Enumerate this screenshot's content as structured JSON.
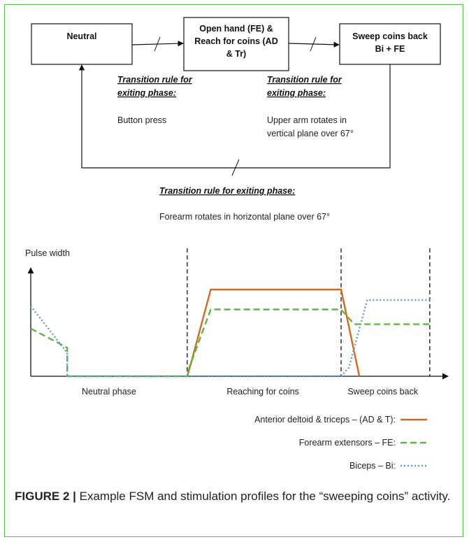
{
  "fsm": {
    "states": [
      {
        "id": "neutral",
        "lines": [
          "Neutral"
        ]
      },
      {
        "id": "open-hand",
        "lines": [
          "Open hand (FE) &",
          "Reach for coins (AD",
          "& Tr)"
        ]
      },
      {
        "id": "sweep",
        "lines": [
          "Sweep coins back",
          "Bi + FE"
        ]
      }
    ],
    "rules": [
      {
        "id": "rule-1",
        "heading": [
          "Transition rule for",
          "exiting phase:"
        ],
        "body": [
          "Button press"
        ]
      },
      {
        "id": "rule-2",
        "heading": [
          "Transition rule for",
          "exiting phase:"
        ],
        "body": [
          "Upper arm rotates in",
          "vertical plane over 67°"
        ]
      },
      {
        "id": "rule-3",
        "heading": [
          "Transition rule for exiting phase:"
        ],
        "body": [
          "Forearm rotates in horizontal plane over 67°"
        ]
      }
    ]
  },
  "chart_data": {
    "type": "line",
    "ylabel": "Pulse width",
    "phases": [
      "Neutral phase",
      "Reaching for coins",
      "Sweep coins back"
    ],
    "series": [
      {
        "name": "Anterior deltoid & triceps – (AD & T):",
        "color": "#d4691e",
        "style": "solid",
        "points": [
          [
            3,
            0.0
          ],
          [
            3.05,
            0.1
          ],
          [
            3.45,
            1.0
          ],
          [
            5.95,
            1.0
          ],
          [
            6.3,
            0.0
          ]
        ]
      },
      {
        "name": "Forearm extensors – FE:",
        "color": "#5cb83c",
        "style": "dashed",
        "points": [
          [
            0,
            0.55
          ],
          [
            0.7,
            0.33
          ],
          [
            0.7,
            0.0
          ],
          [
            3,
            0.0
          ],
          [
            3.05,
            0.12
          ],
          [
            3.45,
            0.77
          ],
          [
            5.95,
            0.77
          ],
          [
            6.2,
            0.6
          ],
          [
            7.7,
            0.6
          ]
        ]
      },
      {
        "name": "Biceps – Bi:",
        "color": "#5b9bd5",
        "style": "dotted",
        "points": [
          [
            0,
            0.81
          ],
          [
            0.7,
            0.27
          ],
          [
            0.7,
            0.0
          ],
          [
            3,
            0.0
          ],
          [
            5.95,
            0.0
          ],
          [
            6.1,
            0.1
          ],
          [
            6.45,
            0.88
          ],
          [
            7.7,
            0.88
          ]
        ]
      }
    ],
    "phase_boundaries": [
      3,
      5.95,
      7.65
    ],
    "xlim": [
      0,
      8
    ],
    "ylim": [
      0,
      1.25
    ]
  },
  "caption": {
    "label": "FIGURE 2 |",
    "text": " Example FSM and stimulation profiles for the “sweeping coins” activity."
  }
}
